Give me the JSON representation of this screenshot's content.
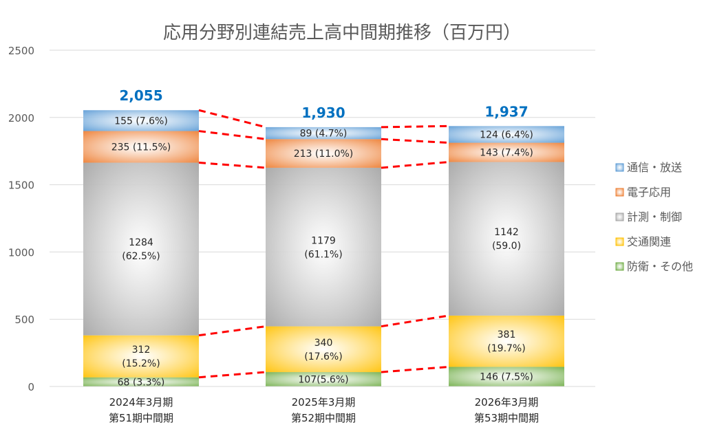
{
  "chart_data": {
    "type": "bar",
    "stacked": true,
    "title": "応用分野別連結売上高中間期推移（百万円）",
    "xlabel": "",
    "ylabel": "",
    "ylim": [
      0,
      2500
    ],
    "yticks": [
      "0",
      "500",
      "1000",
      "1500",
      "2000",
      "2500"
    ],
    "grid": true,
    "legend_position": "right",
    "categories": [
      [
        "2024年3月期",
        "第51期中間期"
      ],
      [
        "2025年3月期",
        "第52期中間期"
      ],
      [
        "2026年3月期",
        "第53期中間期"
      ]
    ],
    "totals": [
      "2,055",
      "1,930",
      "1,937"
    ],
    "series": [
      {
        "name": "防衛・その他",
        "color": "#70AD47",
        "values": [
          68,
          107,
          146
        ],
        "labels": [
          [
            "68 (3.3%)"
          ],
          [
            "107(5.6%)"
          ],
          [
            "146 (7.5%)"
          ]
        ]
      },
      {
        "name": "交通関連",
        "color": "#FFC000",
        "values": [
          312,
          340,
          381
        ],
        "labels": [
          [
            "312",
            "(15.2%)"
          ],
          [
            "340",
            "(17.6%)"
          ],
          [
            "381",
            "(19.7%)"
          ]
        ]
      },
      {
        "name": "計測・制御",
        "color": "#A5A5A5",
        "values": [
          1284,
          1179,
          1142
        ],
        "labels": [
          [
            "1284",
            "(62.5%)"
          ],
          [
            "1179",
            "(61.1%)"
          ],
          [
            "1142",
            "(59.0)"
          ]
        ]
      },
      {
        "name": "電子応用",
        "color": "#ED7D31",
        "values": [
          235,
          213,
          143
        ],
        "labels": [
          [
            "235 (11.5%)"
          ],
          [
            "213 (11.0%)"
          ],
          [
            "143 (7.4%)"
          ]
        ]
      },
      {
        "name": "通信・放送",
        "color": "#5B9BD5",
        "values": [
          155,
          89,
          124
        ],
        "labels": [
          [
            "155 (7.6%)"
          ],
          [
            "89 (4.7%)"
          ],
          [
            "124 (6.4%)"
          ]
        ]
      }
    ],
    "legend_order": [
      "通信・放送",
      "電子応用",
      "計測・制御",
      "交通関連",
      "防衛・その他"
    ],
    "connector_color": "#FF0000"
  }
}
